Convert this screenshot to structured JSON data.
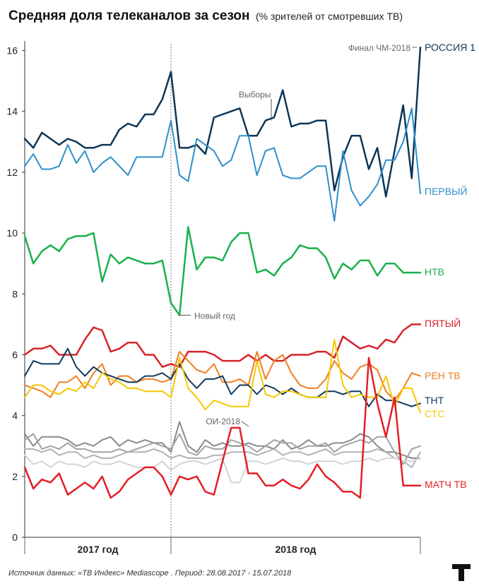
{
  "header": {
    "title": "Средняя доля телеканалов за сезон",
    "subtitle": "(% зрителей от смотревших ТВ)"
  },
  "footer": {
    "source": "Источник данных: «ТВ Индекс» Mediascope . Период: 28.08.2017 - 15.07.2018"
  },
  "logo": {
    "icon": "t-logo-icon"
  },
  "chart_data": {
    "type": "line",
    "ylim": [
      0,
      16.5
    ],
    "yticks": [
      0,
      2,
      4,
      6,
      8,
      10,
      12,
      14,
      16
    ],
    "period_labels": [
      "2017 год",
      "2018 год"
    ],
    "divider_week": 17,
    "grid": false,
    "annotations": [
      {
        "text": "Новый год",
        "week": 17.5,
        "value": 7.3
      },
      {
        "text": "Выборы",
        "week": 25,
        "value": 13.2
      },
      {
        "text": "ОИ-2018",
        "week": 24,
        "value": 3.6
      },
      {
        "text": "Финал ЧМ-2018",
        "week": 44.5,
        "value": 16.1
      }
    ],
    "weeks": [
      0,
      1,
      2,
      3,
      4,
      5,
      6,
      7,
      8,
      9,
      10,
      11,
      12,
      13,
      14,
      15,
      16,
      17,
      18,
      19,
      20,
      21,
      22,
      23,
      24,
      25,
      26,
      27,
      28,
      29,
      30,
      31,
      32,
      33,
      34,
      35,
      36,
      37,
      38,
      39,
      40,
      41,
      42,
      43,
      44,
      45,
      46
    ],
    "series": [
      {
        "name": "РОССИЯ 1",
        "color": "#0d3658",
        "width": 2.5,
        "values": [
          13.1,
          12.8,
          13.3,
          13.1,
          12.9,
          13.1,
          13.0,
          12.8,
          12.8,
          12.9,
          12.9,
          13.4,
          13.6,
          13.5,
          13.9,
          13.9,
          14.4,
          15.3,
          12.8,
          12.8,
          12.9,
          12.6,
          13.8,
          13.9,
          14.0,
          14.1,
          13.2,
          13.2,
          13.7,
          13.8,
          14.7,
          13.5,
          13.6,
          13.6,
          13.7,
          13.7,
          11.4,
          12.5,
          13.2,
          13.2,
          12.1,
          12.8,
          11.2,
          12.7,
          14.2,
          11.8,
          16.1
        ]
      },
      {
        "name": "ПЕРВЫЙ",
        "color": "#2e8fcc",
        "width": 2,
        "values": [
          12.2,
          12.6,
          12.1,
          12.1,
          12.2,
          12.9,
          12.3,
          12.7,
          12.0,
          12.3,
          12.5,
          12.2,
          11.9,
          12.5,
          12.5,
          12.5,
          12.5,
          13.7,
          11.9,
          11.7,
          13.1,
          12.9,
          12.7,
          12.2,
          12.4,
          13.2,
          13.2,
          11.9,
          12.7,
          12.8,
          11.9,
          11.8,
          11.8,
          12.0,
          12.2,
          12.2,
          10.4,
          12.7,
          11.4,
          10.9,
          11.2,
          11.6,
          12.4,
          12.4,
          13.0,
          14.1,
          11.3
        ]
      },
      {
        "name": "НТВ",
        "color": "#19b14c",
        "width": 2.5,
        "values": [
          9.9,
          9.0,
          9.4,
          9.6,
          9.4,
          9.8,
          9.9,
          9.9,
          10.0,
          8.4,
          9.3,
          9.0,
          9.2,
          9.1,
          9.0,
          9.0,
          9.1,
          7.7,
          7.3,
          10.2,
          8.8,
          9.2,
          9.2,
          9.1,
          9.7,
          10.0,
          10.0,
          8.7,
          8.8,
          8.6,
          9.0,
          9.2,
          9.6,
          9.5,
          9.5,
          9.2,
          8.5,
          9.0,
          8.8,
          9.1,
          9.1,
          8.6,
          9.0,
          9.0,
          8.7,
          8.7,
          8.7
        ]
      },
      {
        "name": "ПЯТЫЙ",
        "color": "#d8232a",
        "width": 2.5,
        "values": [
          6.0,
          6.2,
          6.2,
          6.3,
          6.0,
          6.0,
          6.0,
          6.5,
          6.9,
          6.8,
          6.1,
          6.2,
          6.4,
          6.4,
          6.0,
          6.0,
          5.6,
          5.7,
          5.6,
          6.1,
          6.1,
          6.1,
          6.0,
          5.8,
          5.8,
          5.8,
          6.0,
          5.8,
          6.0,
          5.8,
          5.8,
          6.0,
          6.0,
          6.0,
          6.1,
          6.1,
          5.9,
          6.6,
          6.4,
          6.2,
          6.3,
          6.2,
          6.5,
          6.4,
          6.8,
          7.0,
          7.0
        ]
      },
      {
        "name": "РЕН ТВ",
        "color": "#f07f20",
        "width": 2,
        "values": [
          5.0,
          4.9,
          4.8,
          4.6,
          5.1,
          5.1,
          5.3,
          4.9,
          5.4,
          5.7,
          5.0,
          5.3,
          5.3,
          5.1,
          5.2,
          5.2,
          5.1,
          5.2,
          6.1,
          5.8,
          5.5,
          5.4,
          5.7,
          5.1,
          5.1,
          5.2,
          5.0,
          6.1,
          5.2,
          5.8,
          6.0,
          5.4,
          5.0,
          4.9,
          4.9,
          5.2,
          5.8,
          5.4,
          5.2,
          5.6,
          5.7,
          5.5,
          4.8,
          4.5,
          4.9,
          5.4,
          5.3
        ]
      },
      {
        "name": "ТНТ",
        "color": "#113a5e",
        "width": 2,
        "values": [
          5.3,
          5.8,
          5.7,
          5.7,
          5.7,
          6.2,
          5.6,
          5.3,
          5.6,
          5.4,
          5.3,
          5.2,
          5.1,
          5.1,
          5.3,
          5.3,
          5.4,
          5.2,
          5.7,
          5.2,
          4.9,
          5.2,
          5.2,
          5.3,
          4.7,
          5.0,
          5.0,
          4.7,
          5.0,
          4.9,
          4.7,
          4.9,
          4.7,
          4.6,
          4.6,
          4.8,
          4.8,
          4.7,
          4.8,
          4.8,
          4.3,
          4.7,
          4.5,
          4.5,
          4.4,
          4.3,
          4.4
        ]
      },
      {
        "name": "СТС",
        "color": "#f5c800",
        "width": 2,
        "values": [
          4.6,
          5.0,
          5.0,
          4.8,
          4.7,
          4.9,
          4.8,
          5.1,
          4.9,
          5.4,
          5.2,
          5.1,
          4.9,
          4.9,
          4.8,
          4.8,
          4.8,
          4.6,
          5.9,
          4.9,
          4.6,
          4.2,
          4.5,
          4.4,
          4.3,
          4.3,
          4.3,
          5.8,
          4.7,
          4.6,
          4.8,
          4.8,
          4.7,
          4.6,
          4.6,
          4.6,
          6.5,
          5.0,
          4.6,
          4.7,
          4.6,
          4.6,
          5.3,
          4.3,
          4.9,
          4.9,
          4.1
        ]
      },
      {
        "name": "МАТЧ ТВ",
        "color": "#e41e26",
        "width": 2.5,
        "values": [
          2.3,
          1.6,
          1.9,
          1.8,
          2.1,
          1.4,
          1.6,
          1.8,
          1.6,
          2.0,
          1.3,
          1.5,
          1.9,
          2.1,
          2.3,
          2.3,
          2.0,
          1.4,
          2.0,
          1.9,
          2.0,
          1.5,
          1.4,
          2.5,
          3.6,
          3.6,
          2.1,
          2.1,
          1.7,
          1.7,
          1.9,
          1.7,
          1.6,
          1.9,
          2.4,
          2.0,
          1.8,
          1.5,
          1.5,
          1.3,
          5.9,
          4.4,
          3.3,
          4.6,
          1.7,
          1.7,
          1.7
        ]
      },
      {
        "name": "",
        "color": "#8a8a8a",
        "width": 2,
        "values": [
          3.4,
          3.0,
          3.3,
          3.3,
          3.3,
          3.2,
          3.0,
          3.1,
          3.0,
          3.2,
          3.3,
          3.0,
          3.2,
          3.1,
          3.2,
          3.1,
          3.1,
          2.8,
          3.8,
          3.0,
          2.8,
          3.2,
          3.0,
          3.1,
          3.0,
          3.0,
          3.1,
          3.0,
          3.0,
          2.9,
          3.2,
          2.9,
          3.0,
          3.2,
          3.0,
          3.0,
          3.1,
          3.1,
          3.2,
          3.4,
          3.3,
          3.0,
          2.8,
          2.8,
          2.7,
          2.6,
          2.6
        ]
      },
      {
        "name": "",
        "color": "#a3a3a3",
        "width": 2,
        "values": [
          3.2,
          3.4,
          2.9,
          3.0,
          2.9,
          3.1,
          2.9,
          2.9,
          2.8,
          2.8,
          2.8,
          2.9,
          2.8,
          2.9,
          3.0,
          3.1,
          3.0,
          2.9,
          3.4,
          2.8,
          2.7,
          3.0,
          2.9,
          2.9,
          3.2,
          3.1,
          3.0,
          2.8,
          3.0,
          3.2,
          3.1,
          3.1,
          2.9,
          3.0,
          3.0,
          3.1,
          2.8,
          3.0,
          3.1,
          3.2,
          3.1,
          3.3,
          3.3,
          2.8,
          2.4,
          2.9,
          3.0
        ]
      },
      {
        "name": "",
        "color": "#b3b3b3",
        "width": 2,
        "values": [
          2.9,
          2.9,
          2.8,
          2.9,
          2.7,
          2.8,
          2.8,
          2.6,
          2.7,
          2.6,
          2.6,
          2.7,
          2.8,
          2.8,
          2.8,
          2.9,
          2.8,
          2.6,
          2.7,
          2.6,
          2.6,
          2.6,
          2.7,
          2.7,
          2.8,
          2.8,
          2.8,
          2.7,
          2.8,
          2.9,
          2.7,
          2.8,
          2.8,
          2.7,
          2.8,
          2.9,
          2.7,
          2.8,
          2.8,
          2.8,
          2.8,
          2.9,
          2.8,
          2.6,
          2.5,
          2.3,
          2.8
        ]
      },
      {
        "name": "",
        "color": "#d4d4d4",
        "width": 2,
        "values": [
          2.7,
          2.4,
          2.5,
          2.3,
          2.5,
          2.4,
          2.4,
          2.3,
          2.5,
          2.4,
          2.4,
          2.5,
          2.4,
          2.3,
          2.3,
          2.3,
          2.5,
          2.2,
          2.4,
          2.5,
          2.5,
          2.4,
          2.5,
          2.6,
          1.8,
          1.8,
          2.5,
          2.5,
          2.4,
          2.5,
          2.6,
          2.5,
          2.5,
          2.4,
          2.5,
          2.5,
          2.5,
          2.4,
          2.5,
          2.5,
          2.6,
          2.5,
          2.6,
          2.6,
          2.5,
          2.5,
          2.6
        ]
      }
    ]
  }
}
